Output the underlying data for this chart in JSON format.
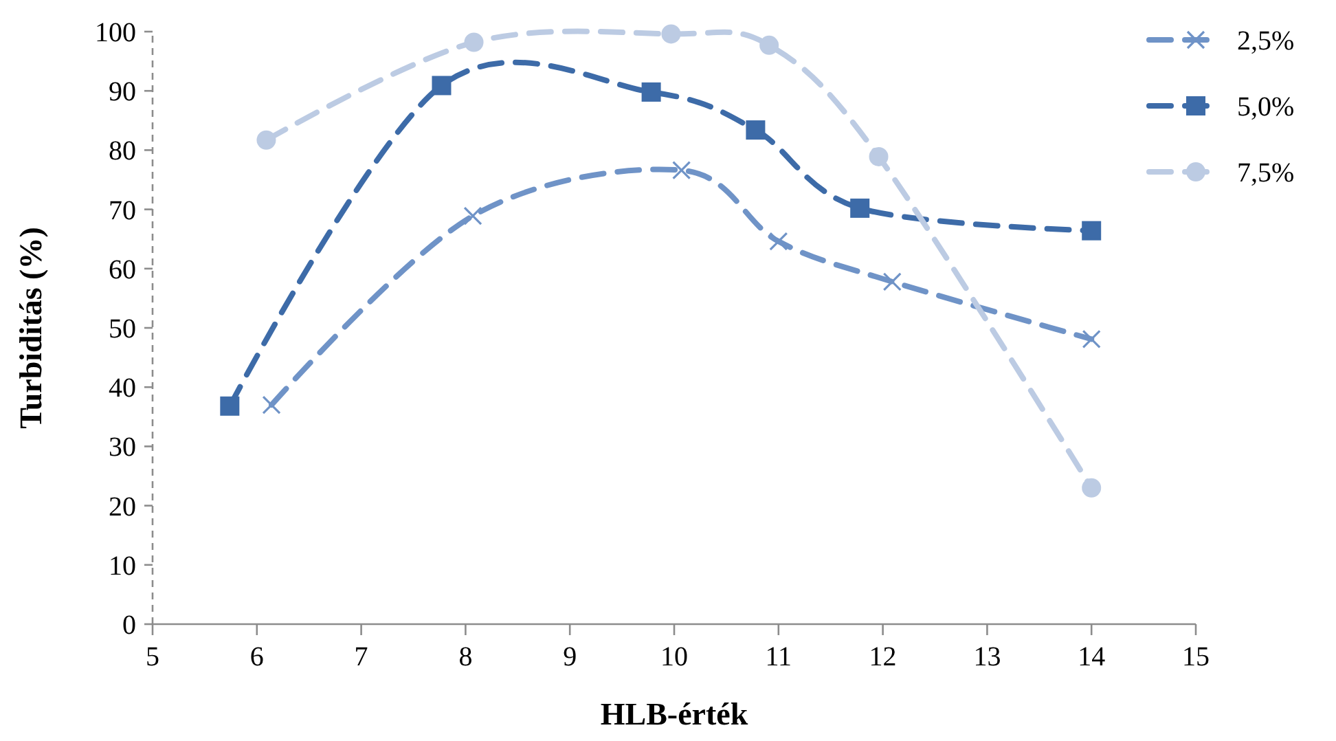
{
  "chart_data": {
    "type": "line",
    "xlabel": "HLB-érték",
    "ylabel": "Turbiditás (%)",
    "xlim": [
      5,
      15
    ],
    "xticks": [
      5,
      6,
      7,
      8,
      9,
      10,
      11,
      12,
      13,
      14,
      15
    ],
    "ylim": [
      0,
      100
    ],
    "yticks": [
      0,
      10,
      20,
      30,
      40,
      50,
      60,
      70,
      80,
      90,
      100
    ],
    "grid": false,
    "legend": "right",
    "line_style": "dashed",
    "series": [
      {
        "name": "2,5%",
        "color": "#6f93c7",
        "marker": "cross",
        "x": [
          6.14,
          8.07,
          10.07,
          11.0,
          12.09,
          14.0
        ],
        "values": [
          37,
          68.9,
          76.6,
          64.6,
          57.8,
          48.1
        ]
      },
      {
        "name": "5,0%",
        "color": "#3d6ba8",
        "marker": "square",
        "x": [
          5.74,
          7.77,
          9.78,
          10.78,
          11.78,
          14.0
        ],
        "values": [
          36.8,
          90.9,
          89.8,
          83.4,
          70.2,
          66.4
        ]
      },
      {
        "name": "7,5%",
        "color": "#bccbe3",
        "marker": "circle",
        "x": [
          6.09,
          8.08,
          9.97,
          10.91,
          11.96,
          14.0
        ],
        "values": [
          81.7,
          98.2,
          99.6,
          97.7,
          78.9,
          23.0
        ]
      }
    ]
  }
}
